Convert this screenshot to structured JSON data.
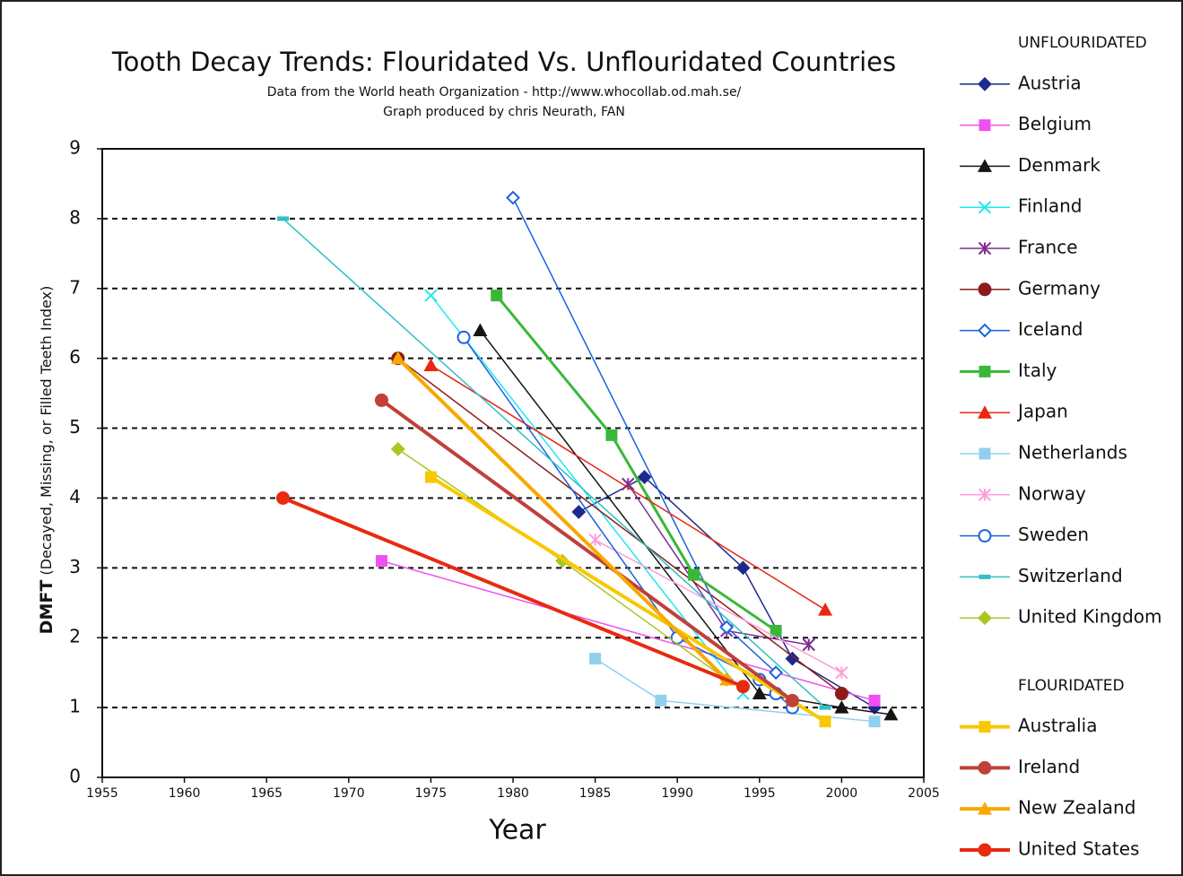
{
  "chart_data": {
    "type": "line",
    "title": "Tooth Decay Trends:   Flouridated  Vs. Unflouridated  Countries",
    "subtitle": [
      "Data from the World heath Organization - http://www.whocollab.od.mah.se/",
      "Graph produced by chris Neurath, FAN"
    ],
    "x_label": "Year",
    "y_label": [
      "DMFT",
      "(Decayed, Missing, or Filled Teeth Index)"
    ],
    "xlim": [
      1955,
      2005
    ],
    "xticks": [
      1955,
      1960,
      1965,
      1970,
      1975,
      1980,
      1985,
      1990,
      1995,
      2000,
      2005
    ],
    "ylim": [
      0,
      9
    ],
    "yticks": [
      0,
      1,
      2,
      3,
      4,
      5,
      6,
      7,
      8,
      9
    ],
    "grid": true,
    "legend_groups": [
      "UNFLOURIDATED",
      "FLOURIDATED"
    ],
    "series": [
      {
        "name": "Austria",
        "group": 0,
        "color": "#1c2a8c",
        "marker": "diamond",
        "line_width": 1.5,
        "x": [
          1984,
          1988,
          1994,
          1997,
          2002
        ],
        "values": [
          3.8,
          4.3,
          3.0,
          1.7,
          1.0
        ]
      },
      {
        "name": "Belgium",
        "group": 0,
        "color": "#f050f0",
        "marker": "square",
        "line_width": 1.5,
        "x": [
          1972,
          2002
        ],
        "values": [
          3.1,
          1.1
        ]
      },
      {
        "name": "Denmark",
        "group": 0,
        "color": "#151515",
        "marker": "triangle",
        "line_width": 1.5,
        "x": [
          1978,
          1995,
          2000,
          2003
        ],
        "values": [
          6.4,
          1.2,
          1.0,
          0.9
        ]
      },
      {
        "name": "Finland",
        "group": 0,
        "color": "#20e8f0",
        "marker": "x",
        "line_width": 1.5,
        "x": [
          1975,
          1994
        ],
        "values": [
          6.9,
          1.2
        ]
      },
      {
        "name": "France",
        "group": 0,
        "color": "#7d2e8e",
        "marker": "asterisk",
        "line_width": 1.5,
        "x": [
          1987,
          1993,
          1998
        ],
        "values": [
          4.2,
          2.1,
          1.9
        ]
      },
      {
        "name": "Germany",
        "group": 0,
        "color": "#8c1c1c",
        "marker": "circle",
        "line_width": 1.5,
        "x": [
          1973,
          2000
        ],
        "values": [
          6.0,
          1.2
        ]
      },
      {
        "name": "Iceland",
        "group": 0,
        "color": "#1a62e0",
        "marker": "open-diamond",
        "line_width": 1.5,
        "x": [
          1980,
          1993,
          1996
        ],
        "values": [
          8.3,
          2.15,
          1.5
        ]
      },
      {
        "name": "Italy",
        "group": 0,
        "color": "#38b838",
        "marker": "square",
        "line_width": 3,
        "x": [
          1979,
          1986,
          1991,
          1996
        ],
        "values": [
          6.9,
          4.9,
          2.9,
          2.1
        ]
      },
      {
        "name": "Japan",
        "group": 0,
        "color": "#e82812",
        "marker": "triangle",
        "line_width": 1.5,
        "x": [
          1975,
          1999
        ],
        "values": [
          5.9,
          2.4
        ]
      },
      {
        "name": "Netherlands",
        "group": 0,
        "color": "#90d0ee",
        "marker": "square",
        "line_width": 1.5,
        "x": [
          1985,
          1989,
          2002
        ],
        "values": [
          1.7,
          1.1,
          0.8
        ]
      },
      {
        "name": "Norway",
        "group": 0,
        "color": "#ff9cd8",
        "marker": "asterisk",
        "line_width": 1.5,
        "x": [
          1985,
          2000
        ],
        "values": [
          3.4,
          1.5
        ]
      },
      {
        "name": "Sweden",
        "group": 0,
        "color": "#1a62e0",
        "marker": "open-circle",
        "line_width": 1.5,
        "x": [
          1977,
          1990,
          1995,
          1996,
          1997
        ],
        "values": [
          6.3,
          2.0,
          1.4,
          1.2,
          1.0
        ]
      },
      {
        "name": "Switzerland",
        "group": 0,
        "color": "#30c0c4",
        "marker": "dash",
        "line_width": 1.5,
        "x": [
          1966,
          1999
        ],
        "values": [
          8.0,
          1.0
        ]
      },
      {
        "name": "United Kingdom",
        "group": 0,
        "color": "#a8c820",
        "marker": "diamond",
        "line_width": 1.5,
        "x": [
          1973,
          1983,
          1993
        ],
        "values": [
          4.7,
          3.1,
          1.4
        ]
      },
      {
        "name": "Australia",
        "group": 1,
        "color": "#f8c800",
        "marker": "square",
        "line_width": 4,
        "x": [
          1975,
          1999
        ],
        "values": [
          4.3,
          0.8
        ]
      },
      {
        "name": "Ireland",
        "group": 1,
        "color": "#c0403a",
        "marker": "circle",
        "line_width": 4,
        "x": [
          1972,
          1997
        ],
        "values": [
          5.4,
          1.1
        ]
      },
      {
        "name": "New Zealand",
        "group": 1,
        "color": "#f8a800",
        "marker": "triangle",
        "line_width": 4,
        "x": [
          1973,
          1993
        ],
        "values": [
          6.0,
          1.4
        ]
      },
      {
        "name": "United States",
        "group": 1,
        "color": "#e82a10",
        "marker": "circle",
        "line_width": 4,
        "x": [
          1966,
          1994
        ],
        "values": [
          4.0,
          1.3
        ]
      }
    ]
  }
}
